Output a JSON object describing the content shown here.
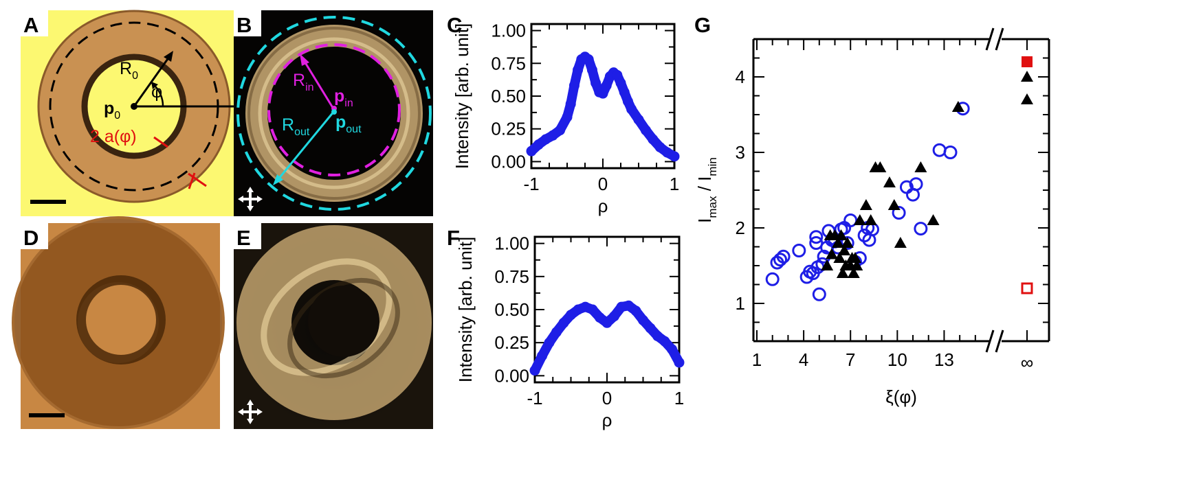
{
  "panels": {
    "A": {
      "letter": "A",
      "labels": {
        "r0_main": "R",
        "r0_sub": "0",
        "phi": "φ",
        "p0_main": "p",
        "p0_sub": "0",
        "thickness": "2 a(φ)"
      }
    },
    "B": {
      "letter": "B",
      "labels": {
        "rin_main": "R",
        "rin_sub": "in",
        "pin_main": "p",
        "pin_sub": "in",
        "rout_main": "R",
        "rout_sub": "out",
        "pout_main": "p",
        "pout_sub": "out"
      }
    },
    "C": {
      "letter": "C"
    },
    "D": {
      "letter": "D"
    },
    "E": {
      "letter": "E"
    },
    "F": {
      "letter": "F"
    },
    "G": {
      "letter": "G"
    }
  },
  "colors": {
    "yellow_bg": "#FCF871",
    "ring_brown": "#C99152",
    "copper_bg": "#C88743",
    "dark_bg": "#050403",
    "gold_ring": "#D7B57B",
    "magenta": "#E020E0",
    "cyan": "#20D8E0",
    "red": "#E01010",
    "blue": "#1E1EE6",
    "black": "#000000"
  },
  "chart_data": [
    {
      "id": "C",
      "type": "scatter",
      "ylabel": "Intensity [arb. unit]",
      "xlabel": "ρ",
      "xlim": [
        -1,
        1
      ],
      "ylim": [
        -0.05,
        1.05
      ],
      "xticks": [
        -1,
        0,
        1
      ],
      "yticks": [
        "0.00",
        "0.25",
        "0.50",
        "0.75",
        "1.00"
      ],
      "series": [
        {
          "color": "#1E1EE6",
          "x": [
            -1.0,
            -0.9,
            -0.8,
            -0.7,
            -0.6,
            -0.5,
            -0.45,
            -0.4,
            -0.35,
            -0.3,
            -0.25,
            -0.2,
            -0.15,
            -0.1,
            -0.05,
            0.0,
            0.05,
            0.1,
            0.15,
            0.2,
            0.25,
            0.3,
            0.35,
            0.4,
            0.5,
            0.6,
            0.7,
            0.8,
            0.9,
            1.0
          ],
          "y": [
            0.08,
            0.13,
            0.17,
            0.2,
            0.24,
            0.34,
            0.44,
            0.58,
            0.7,
            0.78,
            0.8,
            0.78,
            0.7,
            0.6,
            0.53,
            0.52,
            0.58,
            0.65,
            0.68,
            0.66,
            0.6,
            0.53,
            0.46,
            0.4,
            0.32,
            0.24,
            0.17,
            0.11,
            0.07,
            0.04
          ]
        }
      ]
    },
    {
      "id": "F",
      "type": "scatter",
      "ylabel": "Intensity [arb. unit]",
      "xlabel": "ρ",
      "xlim": [
        -1,
        1
      ],
      "ylim": [
        -0.05,
        1.05
      ],
      "xticks": [
        -1,
        0,
        1
      ],
      "yticks": [
        "0.00",
        "0.25",
        "0.50",
        "0.75",
        "1.00"
      ],
      "series": [
        {
          "color": "#1E1EE6",
          "x": [
            -1.0,
            -0.9,
            -0.8,
            -0.7,
            -0.6,
            -0.5,
            -0.4,
            -0.3,
            -0.2,
            -0.1,
            0.0,
            0.1,
            0.2,
            0.3,
            0.4,
            0.5,
            0.6,
            0.7,
            0.8,
            0.9,
            1.0
          ],
          "y": [
            0.04,
            0.15,
            0.25,
            0.33,
            0.4,
            0.46,
            0.5,
            0.52,
            0.5,
            0.44,
            0.4,
            0.45,
            0.52,
            0.53,
            0.49,
            0.42,
            0.36,
            0.3,
            0.26,
            0.2,
            0.1
          ]
        }
      ]
    },
    {
      "id": "G",
      "type": "scatter",
      "ylabel_main": "I",
      "ylabel_sub1": "max",
      "ylabel_sep": " / I",
      "ylabel_sub2": "min",
      "xlabel": "ξ(φ)",
      "xticks": [
        "1",
        "4",
        "7",
        "10",
        "13"
      ],
      "x_break_label": "∞",
      "xlim": [
        1,
        15.8
      ],
      "ylim": [
        0.5,
        4.5
      ],
      "yticks": [
        "1",
        "2",
        "3",
        "4"
      ],
      "series": [
        {
          "marker": "open-circle",
          "color": "#1E1EE6",
          "x": [
            2.0,
            2.3,
            2.5,
            2.7,
            3.7,
            4.2,
            4.4,
            4.6,
            4.8,
            4.8,
            4.9,
            5.0,
            5.2,
            5.3,
            5.5,
            5.6,
            5.8,
            6.0,
            6.2,
            6.4,
            6.6,
            6.8,
            7.0,
            7.3,
            7.6,
            7.9,
            8.1,
            8.2,
            8.4,
            10.1,
            10.6,
            11.0,
            11.2,
            11.5,
            12.7,
            13.4,
            14.2
          ],
          "y": [
            1.32,
            1.54,
            1.58,
            1.62,
            1.7,
            1.35,
            1.42,
            1.4,
            1.88,
            1.8,
            1.48,
            1.12,
            1.52,
            1.62,
            1.74,
            1.96,
            1.84,
            1.82,
            1.74,
            1.98,
            2.0,
            1.8,
            2.1,
            1.55,
            1.6,
            1.9,
            2.0,
            1.84,
            1.98,
            2.2,
            2.54,
            2.44,
            2.58,
            1.99,
            3.03,
            3.0,
            3.58
          ]
        },
        {
          "marker": "filled-triangle",
          "color": "#000000",
          "x": [
            5.5,
            5.7,
            5.8,
            6.0,
            6.2,
            6.3,
            6.4,
            6.5,
            6.6,
            6.7,
            6.8,
            7.0,
            7.1,
            7.2,
            7.3,
            7.4,
            7.6,
            8.0,
            8.3,
            8.6,
            8.9,
            9.5,
            9.8,
            10.2,
            11.5,
            12.3,
            13.9
          ],
          "y": [
            1.5,
            1.9,
            1.65,
            1.9,
            1.8,
            1.6,
            1.9,
            1.4,
            1.7,
            1.5,
            1.8,
            1.5,
            1.6,
            1.4,
            1.6,
            1.5,
            2.1,
            2.3,
            2.1,
            2.8,
            2.8,
            2.6,
            2.3,
            1.8,
            2.8,
            2.1,
            3.6
          ]
        },
        {
          "marker": "filled-triangle",
          "color": "#000000",
          "at_infinity": true,
          "y": [
            4.0,
            3.7
          ]
        },
        {
          "marker": "filled-square",
          "color": "#E01010",
          "at_infinity": true,
          "y": [
            4.2
          ]
        },
        {
          "marker": "open-square",
          "color": "#E01010",
          "at_infinity": true,
          "y": [
            1.2
          ]
        }
      ]
    }
  ]
}
